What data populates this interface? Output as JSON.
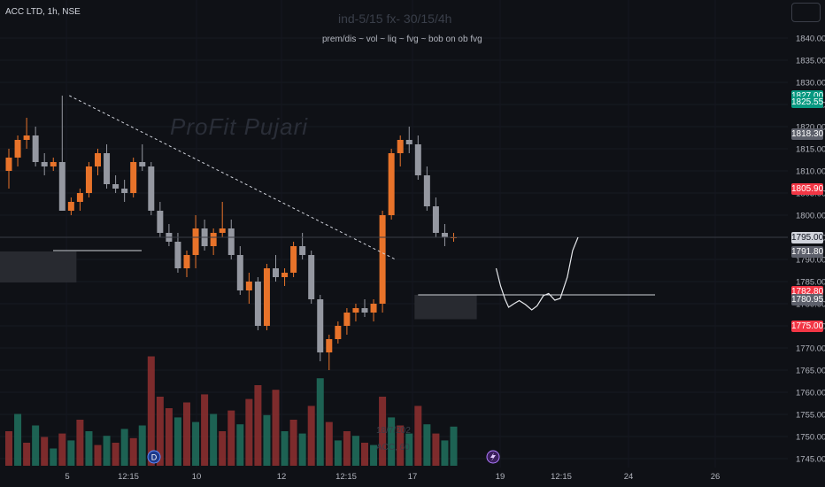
{
  "header": {
    "symbol": "ACC LTD, 1h, NSE",
    "script_title": "ind-5/15 fx- 30/15/4h",
    "script_subtitle": "prem/dis ~ vol ~ liq ~ fvg ~ bob on ob fvg",
    "watermark": "ProFit Pujari",
    "date_watermark": "18/7/202",
    "symbol_watermark": "ACC, 60"
  },
  "colors": {
    "background": "#0f1116",
    "bull": "#e8732a",
    "bear": "#9598a1",
    "vol_bull": "#1f6b5a",
    "vol_bear": "#8a2f2f",
    "badge_green": "#089981",
    "badge_red": "#f23645",
    "badge_gray": "#5d606b"
  },
  "price_badges": [
    {
      "price": 1827.0,
      "label": "1827.00",
      "color": "#089981"
    },
    {
      "price": 1825.55,
      "label": "1825.55",
      "color": "#089981"
    },
    {
      "price": 1818.3,
      "label": "1818.30",
      "color": "#5d606b"
    },
    {
      "price": 1805.9,
      "label": "1805.90",
      "color": "#f23645"
    },
    {
      "price": 1795.0,
      "label": "1795.00",
      "color": "#d1d4dc"
    },
    {
      "price": 1791.8,
      "label": "1791.80",
      "color": "#5d606b"
    },
    {
      "price": 1782.8,
      "label": "1782.80",
      "color": "#f23645"
    },
    {
      "price": 1780.95,
      "label": "1780.95",
      "color": "#5d606b"
    },
    {
      "price": 1775.0,
      "label": "1775.00",
      "color": "#f23645"
    }
  ],
  "icons": [
    "dividend-icon",
    "lightning-icon",
    "settings-icon"
  ],
  "chart_data": {
    "type": "candlestick",
    "ylim": [
      1743,
      1843
    ],
    "y_ticks": [
      1745,
      1750,
      1755,
      1760,
      1765,
      1770,
      1775,
      1780,
      1785,
      1790,
      1795,
      1800,
      1805,
      1810,
      1815,
      1820,
      1825,
      1830,
      1835,
      1840
    ],
    "x_ticks": [
      "5",
      "12:15",
      "10",
      "12",
      "12:15",
      "17",
      "19",
      "12:15",
      "24",
      "26"
    ],
    "candles": [
      {
        "o": 1810,
        "h": 1815,
        "l": 1806,
        "c": 1813
      },
      {
        "o": 1813,
        "h": 1818,
        "l": 1811,
        "c": 1817
      },
      {
        "o": 1817,
        "h": 1822,
        "l": 1815,
        "c": 1818
      },
      {
        "o": 1818,
        "h": 1820,
        "l": 1811,
        "c": 1812
      },
      {
        "o": 1812,
        "h": 1814,
        "l": 1809,
        "c": 1811
      },
      {
        "o": 1811,
        "h": 1813,
        "l": 1810,
        "c": 1812
      },
      {
        "o": 1812,
        "h": 1827,
        "l": 1801,
        "c": 1801
      },
      {
        "o": 1801,
        "h": 1804,
        "l": 1800,
        "c": 1803
      },
      {
        "o": 1803,
        "h": 1806,
        "l": 1801,
        "c": 1805
      },
      {
        "o": 1805,
        "h": 1812,
        "l": 1804,
        "c": 1811
      },
      {
        "o": 1811,
        "h": 1815,
        "l": 1809,
        "c": 1814
      },
      {
        "o": 1814,
        "h": 1816,
        "l": 1806,
        "c": 1807
      },
      {
        "o": 1807,
        "h": 1809,
        "l": 1805,
        "c": 1806
      },
      {
        "o": 1806,
        "h": 1808,
        "l": 1803,
        "c": 1805
      },
      {
        "o": 1805,
        "h": 1813,
        "l": 1804,
        "c": 1812
      },
      {
        "o": 1812,
        "h": 1816,
        "l": 1810,
        "c": 1811
      },
      {
        "o": 1811,
        "h": 1812,
        "l": 1800,
        "c": 1801
      },
      {
        "o": 1801,
        "h": 1803,
        "l": 1795,
        "c": 1796
      },
      {
        "o": 1796,
        "h": 1798,
        "l": 1793,
        "c": 1794
      },
      {
        "o": 1794,
        "h": 1796,
        "l": 1787,
        "c": 1788
      },
      {
        "o": 1788,
        "h": 1792,
        "l": 1786,
        "c": 1791
      },
      {
        "o": 1791,
        "h": 1800,
        "l": 1788,
        "c": 1797
      },
      {
        "o": 1797,
        "h": 1799,
        "l": 1792,
        "c": 1793
      },
      {
        "o": 1793,
        "h": 1797,
        "l": 1791,
        "c": 1796
      },
      {
        "o": 1796,
        "h": 1803,
        "l": 1795,
        "c": 1797
      },
      {
        "o": 1797,
        "h": 1799,
        "l": 1790,
        "c": 1791
      },
      {
        "o": 1791,
        "h": 1793,
        "l": 1782,
        "c": 1783
      },
      {
        "o": 1783,
        "h": 1787,
        "l": 1780,
        "c": 1785
      },
      {
        "o": 1785,
        "h": 1786,
        "l": 1774,
        "c": 1775
      },
      {
        "o": 1775,
        "h": 1789,
        "l": 1774,
        "c": 1788
      },
      {
        "o": 1788,
        "h": 1791,
        "l": 1785,
        "c": 1786
      },
      {
        "o": 1786,
        "h": 1788,
        "l": 1784,
        "c": 1787
      },
      {
        "o": 1787,
        "h": 1794,
        "l": 1786,
        "c": 1793
      },
      {
        "o": 1793,
        "h": 1796,
        "l": 1790,
        "c": 1791
      },
      {
        "o": 1791,
        "h": 1792,
        "l": 1780,
        "c": 1781
      },
      {
        "o": 1781,
        "h": 1782,
        "l": 1767,
        "c": 1769
      },
      {
        "o": 1769,
        "h": 1773,
        "l": 1765,
        "c": 1772
      },
      {
        "o": 1772,
        "h": 1776,
        "l": 1771,
        "c": 1775
      },
      {
        "o": 1775,
        "h": 1779,
        "l": 1773,
        "c": 1778
      },
      {
        "o": 1778,
        "h": 1780,
        "l": 1776,
        "c": 1779
      },
      {
        "o": 1779,
        "h": 1781,
        "l": 1777,
        "c": 1778
      },
      {
        "o": 1778,
        "h": 1781,
        "l": 1776,
        "c": 1780
      },
      {
        "o": 1780,
        "h": 1801,
        "l": 1778,
        "c": 1800
      },
      {
        "o": 1800,
        "h": 1815,
        "l": 1799,
        "c": 1814
      },
      {
        "o": 1814,
        "h": 1818,
        "l": 1811,
        "c": 1817
      },
      {
        "o": 1817,
        "h": 1820,
        "l": 1814,
        "c": 1816
      },
      {
        "o": 1816,
        "h": 1818,
        "l": 1808,
        "c": 1809
      },
      {
        "o": 1809,
        "h": 1811,
        "l": 1801,
        "c": 1802
      },
      {
        "o": 1802,
        "h": 1804,
        "l": 1795,
        "c": 1796
      },
      {
        "o": 1796,
        "h": 1798,
        "l": 1793,
        "c": 1795
      },
      {
        "o": 1795,
        "h": 1796,
        "l": 1794,
        "c": 1795
      }
    ],
    "volume_ylim": [
      0,
      100
    ],
    "volumes": [
      {
        "v": 30,
        "up": false
      },
      {
        "v": 45,
        "up": true
      },
      {
        "v": 20,
        "up": false
      },
      {
        "v": 35,
        "up": true
      },
      {
        "v": 25,
        "up": false
      },
      {
        "v": 15,
        "up": true
      },
      {
        "v": 28,
        "up": false
      },
      {
        "v": 22,
        "up": true
      },
      {
        "v": 40,
        "up": false
      },
      {
        "v": 30,
        "up": true
      },
      {
        "v": 18,
        "up": false
      },
      {
        "v": 26,
        "up": true
      },
      {
        "v": 20,
        "up": false
      },
      {
        "v": 32,
        "up": true
      },
      {
        "v": 24,
        "up": false
      },
      {
        "v": 35,
        "up": true
      },
      {
        "v": 95,
        "up": false
      },
      {
        "v": 60,
        "up": false
      },
      {
        "v": 50,
        "up": false
      },
      {
        "v": 42,
        "up": true
      },
      {
        "v": 55,
        "up": false
      },
      {
        "v": 38,
        "up": true
      },
      {
        "v": 62,
        "up": false
      },
      {
        "v": 45,
        "up": true
      },
      {
        "v": 30,
        "up": false
      },
      {
        "v": 48,
        "up": false
      },
      {
        "v": 36,
        "up": true
      },
      {
        "v": 58,
        "up": false
      },
      {
        "v": 70,
        "up": false
      },
      {
        "v": 44,
        "up": true
      },
      {
        "v": 66,
        "up": false
      },
      {
        "v": 30,
        "up": true
      },
      {
        "v": 40,
        "up": false
      },
      {
        "v": 28,
        "up": true
      },
      {
        "v": 52,
        "up": false
      },
      {
        "v": 76,
        "up": true
      },
      {
        "v": 38,
        "up": false
      },
      {
        "v": 22,
        "up": true
      },
      {
        "v": 30,
        "up": false
      },
      {
        "v": 26,
        "up": true
      },
      {
        "v": 20,
        "up": false
      },
      {
        "v": 18,
        "up": true
      },
      {
        "v": 60,
        "up": false
      },
      {
        "v": 42,
        "up": true
      },
      {
        "v": 35,
        "up": false
      },
      {
        "v": 28,
        "up": true
      },
      {
        "v": 52,
        "up": false
      },
      {
        "v": 36,
        "up": true
      },
      {
        "v": 28,
        "up": false
      },
      {
        "v": 22,
        "up": true
      },
      {
        "v": 34,
        "up": true
      }
    ],
    "zones": [
      {
        "y_top": 1791.8,
        "y_bottom": 1784.8,
        "x_from": 0,
        "x_to": 7
      },
      {
        "y_top": 1782.0,
        "y_bottom": 1776.5,
        "x_from": 46,
        "x_to": 52
      }
    ],
    "support_line": 1795.0,
    "trendline": {
      "from": [
        6,
        1827
      ],
      "to": [
        35.5,
        1790
      ]
    },
    "projection_path": [
      [
        50,
        1788
      ],
      [
        50.5,
        1784
      ],
      [
        51,
        1781
      ],
      [
        51.4,
        1779.2
      ],
      [
        52,
        1780
      ],
      [
        52.6,
        1780.7
      ],
      [
        53.3,
        1779.8
      ],
      [
        54,
        1778.6
      ],
      [
        54.6,
        1779.5
      ],
      [
        55.3,
        1781.8
      ],
      [
        55.9,
        1782.3
      ],
      [
        56.6,
        1780.8
      ],
      [
        57.2,
        1781.2
      ],
      [
        58,
        1786
      ],
      [
        58.6,
        1792
      ],
      [
        59.2,
        1795
      ]
    ]
  }
}
